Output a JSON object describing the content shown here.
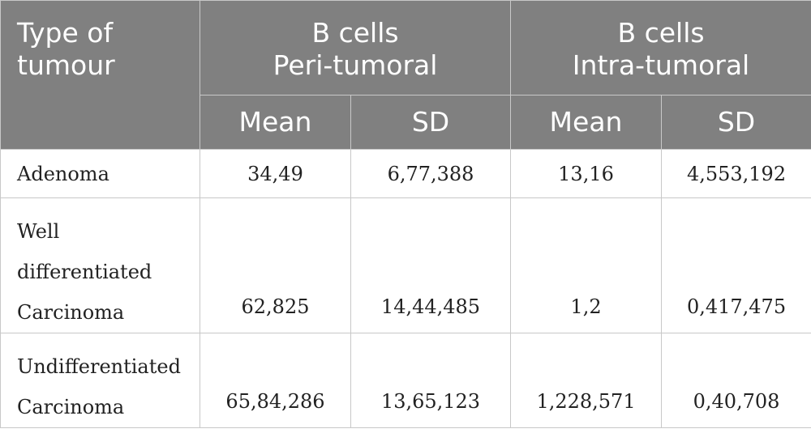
{
  "table": {
    "header": {
      "type_col": [
        "Type of",
        "tumour"
      ],
      "groups": [
        {
          "title": [
            "B cells",
            "Peri-tumoral"
          ]
        },
        {
          "title": [
            "B cells",
            "Intra-tumoral"
          ]
        }
      ],
      "sub": [
        "Mean",
        "SD",
        "Mean",
        "SD"
      ]
    },
    "rows": [
      {
        "label": [
          "Adenoma"
        ],
        "values": [
          "34,49",
          "6,77,388",
          "13,16",
          "4,553,192"
        ]
      },
      {
        "label": [
          "Well",
          "differentiated",
          "Carcinoma"
        ],
        "values": [
          "62,825",
          "14,44,485",
          "1,2",
          "0,417,475"
        ]
      },
      {
        "label": [
          "Undifferentiated",
          "Carcinoma"
        ],
        "values": [
          "65,84,286",
          "13,65,123",
          "1,228,571",
          "0,40,708"
        ]
      }
    ]
  }
}
